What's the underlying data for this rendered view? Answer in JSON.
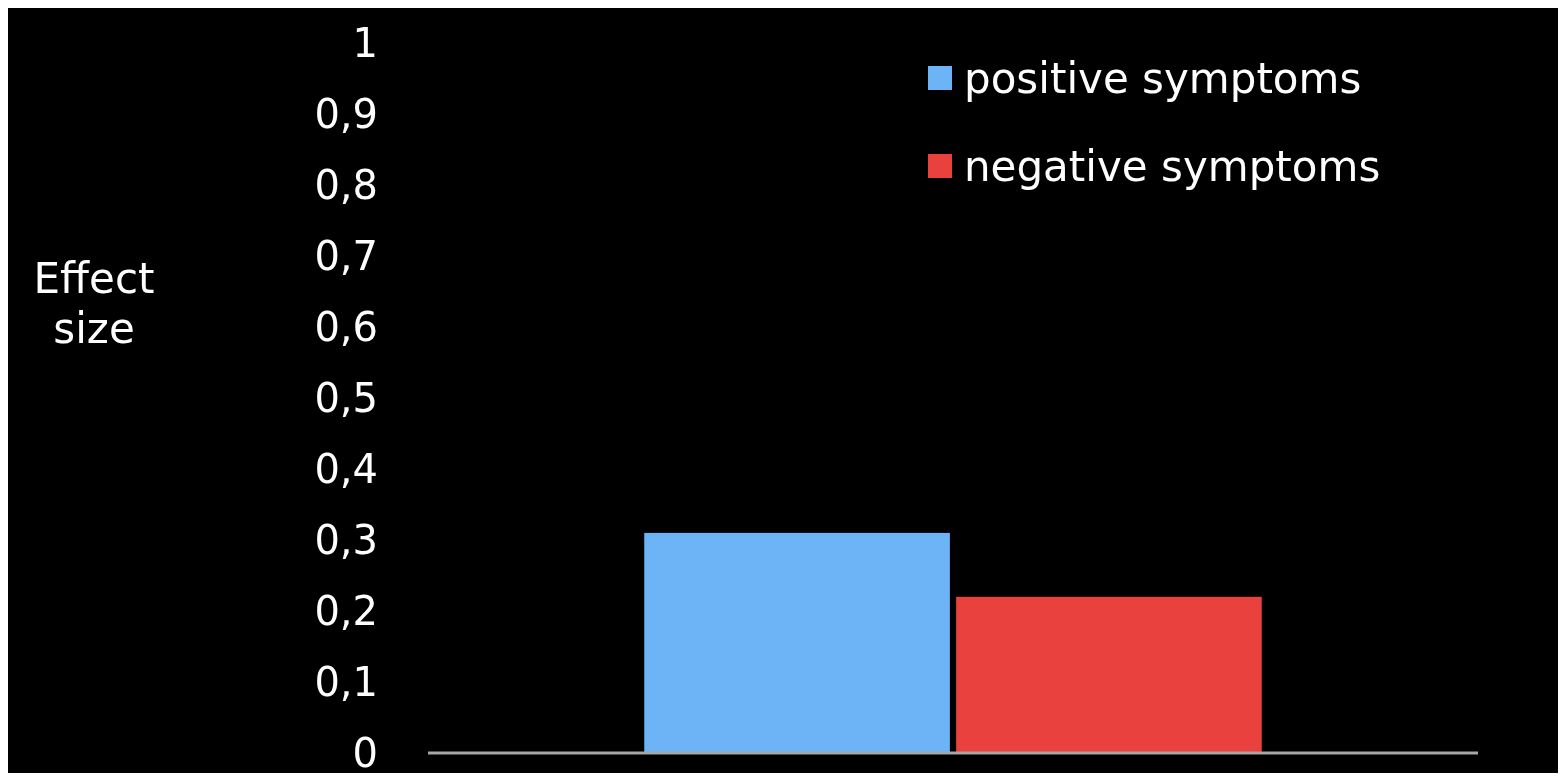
{
  "chart_data": {
    "type": "bar",
    "ylabel": "Effect size",
    "categories": [
      null
    ],
    "series": [
      {
        "name": "positive symptoms",
        "color": "#6cb4f5",
        "values": [
          0.31
        ]
      },
      {
        "name": "negative symptoms",
        "color": "#e8413e",
        "values": [
          0.22
        ]
      }
    ],
    "ylim": [
      0,
      1
    ],
    "yticks": [
      0,
      {
        "value": 0.1,
        "label": "0,1"
      },
      {
        "value": 0.2,
        "label": "0,2"
      },
      {
        "value": 0.3,
        "label": "0,3"
      },
      {
        "value": 0.4,
        "label": "0,4"
      },
      {
        "value": 0.5,
        "label": "0,5"
      },
      {
        "value": 0.6,
        "label": "0,6"
      },
      {
        "value": 0.7,
        "label": "0,7"
      },
      {
        "value": 0.8,
        "label": "0,8"
      },
      {
        "value": 0.9,
        "label": "0,9"
      },
      1
    ],
    "grid": false,
    "legend": "top right"
  }
}
